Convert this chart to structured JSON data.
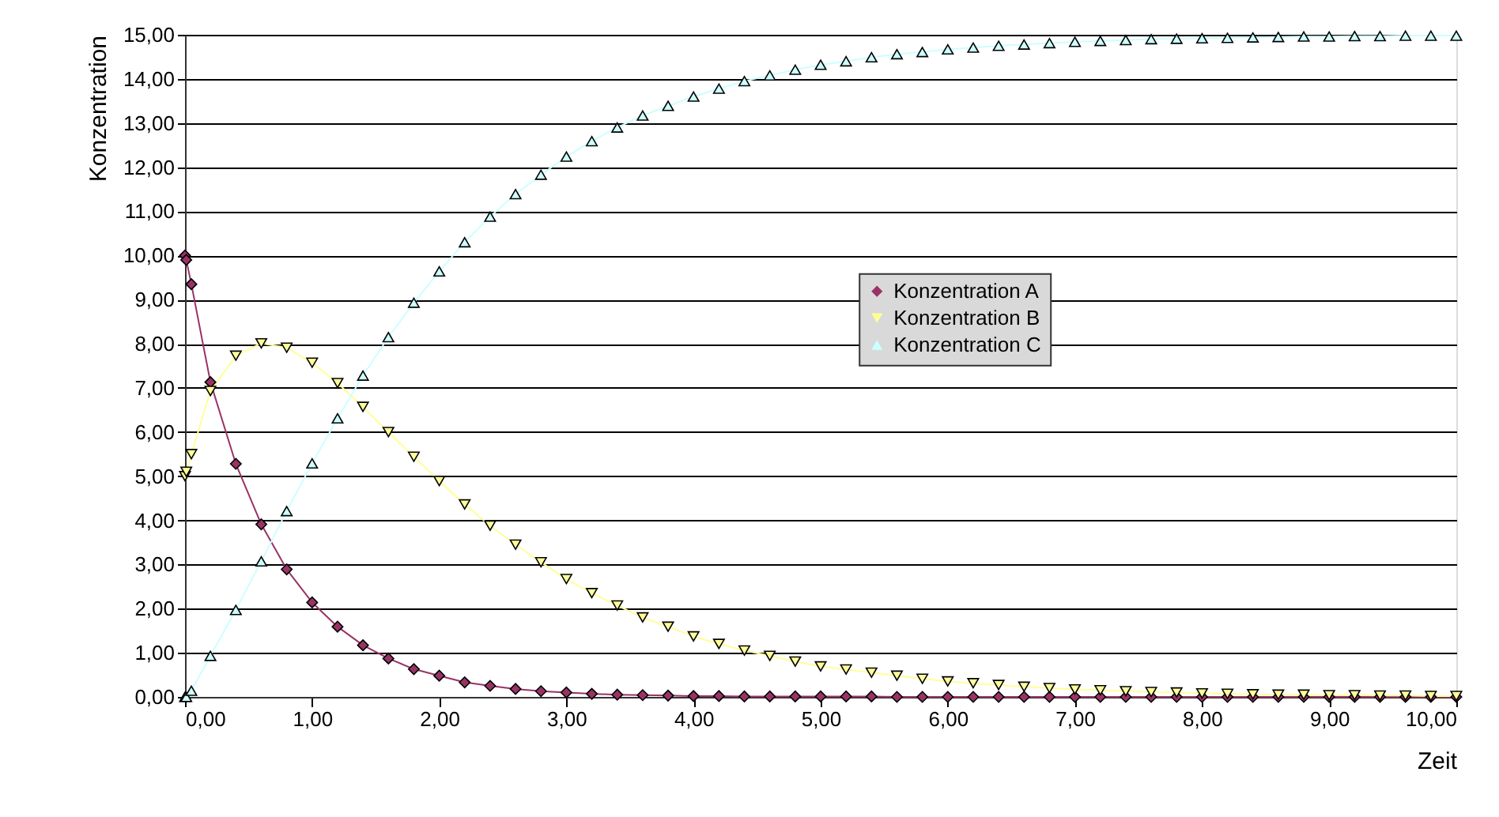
{
  "chart_data": {
    "type": "line",
    "xlabel": "Zeit",
    "ylabel": "Konzentration",
    "x": [
      0,
      0.01,
      0.05,
      0.2,
      0.4,
      0.6,
      0.8,
      1.0,
      1.2,
      1.4,
      1.6,
      1.8,
      2.0,
      2.2,
      2.4,
      2.6,
      2.8,
      3.0,
      3.2,
      3.4,
      3.6,
      3.8,
      4.0,
      4.2,
      4.4,
      4.6,
      4.8,
      5.0,
      5.2,
      5.4,
      5.6,
      5.8,
      6.0,
      6.2,
      6.4,
      6.6,
      6.8,
      7.0,
      7.2,
      7.4,
      7.6,
      7.8,
      8.0,
      8.2,
      8.4,
      8.6,
      8.8,
      9.0,
      9.2,
      9.4,
      9.6,
      9.8,
      10.0
    ],
    "series": [
      {
        "name": "Konzentration A",
        "color": "#993366",
        "marker": "diamond",
        "values": [
          10,
          9.9,
          9.35,
          7.13,
          5.28,
          3.91,
          2.89,
          2.14,
          1.59,
          1.17,
          0.87,
          0.63,
          0.48,
          0.33,
          0.25,
          0.18,
          0.13,
          0.1,
          0.07,
          0.05,
          0.04,
          0.03,
          0.02,
          0.02,
          0.01,
          0.01,
          0.01,
          0.01,
          0.01,
          0.01,
          0,
          0,
          0,
          0,
          0,
          0,
          0,
          0,
          0,
          0,
          0,
          0,
          0,
          0,
          0,
          0,
          0,
          0,
          0,
          0,
          0,
          0,
          0
        ]
      },
      {
        "name": "Konzentration B",
        "color": "#ffff99",
        "marker": "triangle-down",
        "values": [
          5.0,
          5.1,
          5.5,
          6.93,
          7.73,
          8.01,
          7.91,
          7.57,
          7.11,
          6.57,
          6.0,
          5.44,
          4.89,
          4.36,
          3.88,
          3.45,
          3.05,
          2.67,
          2.35,
          2.07,
          1.8,
          1.59,
          1.37,
          1.2,
          1.05,
          0.93,
          0.8,
          0.69,
          0.62,
          0.55,
          0.48,
          0.41,
          0.35,
          0.31,
          0.27,
          0.23,
          0.2,
          0.17,
          0.15,
          0.13,
          0.11,
          0.1,
          0.08,
          0.07,
          0.06,
          0.05,
          0.05,
          0.04,
          0.04,
          0.03,
          0.03,
          0.02,
          0.02
        ]
      },
      {
        "name": "Konzentration C",
        "color": "#ccffff",
        "marker": "triangle-up",
        "values": [
          0,
          0,
          0.14,
          0.93,
          1.97,
          3.07,
          4.21,
          5.29,
          6.31,
          7.28,
          8.15,
          8.93,
          9.64,
          10.3,
          10.88,
          11.39,
          11.83,
          12.24,
          12.59,
          12.9,
          13.17,
          13.39,
          13.6,
          13.78,
          13.95,
          14.08,
          14.21,
          14.32,
          14.4,
          14.49,
          14.56,
          14.61,
          14.67,
          14.71,
          14.75,
          14.78,
          14.81,
          14.84,
          14.86,
          14.88,
          14.9,
          14.91,
          14.92,
          14.93,
          14.94,
          14.95,
          14.96,
          14.96,
          14.97,
          14.97,
          14.98,
          14.98,
          14.98
        ]
      }
    ],
    "xlim": [
      0,
      10
    ],
    "xticks": [
      {
        "value": 0,
        "label": "0,00"
      },
      {
        "value": 1,
        "label": "1,00"
      },
      {
        "value": 2,
        "label": "2,00"
      },
      {
        "value": 3,
        "label": "3,00"
      },
      {
        "value": 4,
        "label": "4,00"
      },
      {
        "value": 5,
        "label": "5,00"
      },
      {
        "value": 6,
        "label": "6,00"
      },
      {
        "value": 7,
        "label": "7,00"
      },
      {
        "value": 8,
        "label": "8,00"
      },
      {
        "value": 9,
        "label": "9,00"
      },
      {
        "value": 10,
        "label": "10,00"
      }
    ],
    "ylim": [
      0,
      15
    ],
    "yticks": [
      {
        "value": 0,
        "label": "0,00"
      },
      {
        "value": 1,
        "label": "1,00"
      },
      {
        "value": 2,
        "label": "2,00"
      },
      {
        "value": 3,
        "label": "3,00"
      },
      {
        "value": 4,
        "label": "4,00"
      },
      {
        "value": 5,
        "label": "5,00"
      },
      {
        "value": 6,
        "label": "6,00"
      },
      {
        "value": 7,
        "label": "7,00"
      },
      {
        "value": 8,
        "label": "8,00"
      },
      {
        "value": 9,
        "label": "9,00"
      },
      {
        "value": 10,
        "label": "10,00"
      },
      {
        "value": 11,
        "label": "11,00"
      },
      {
        "value": 12,
        "label": "12,00"
      },
      {
        "value": 13,
        "label": "13,00"
      },
      {
        "value": 14,
        "label": "14,00"
      },
      {
        "value": 15,
        "label": "15,00"
      }
    ],
    "grid": "y",
    "legend": "center",
    "line_style": "solid"
  }
}
